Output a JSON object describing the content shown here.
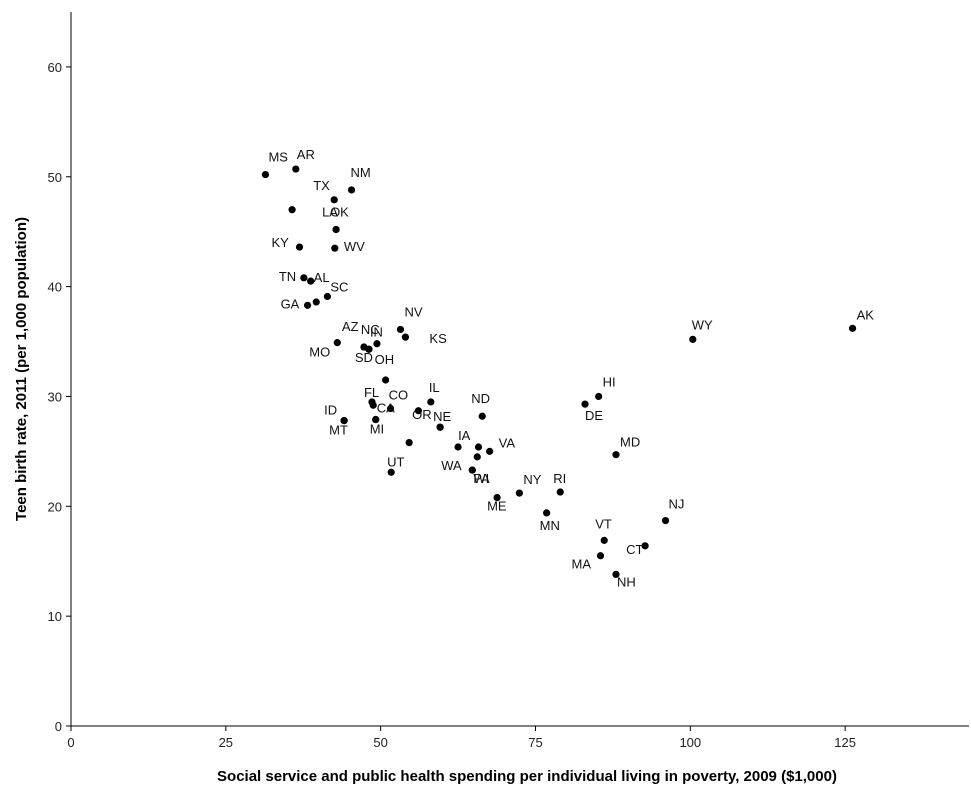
{
  "chart_data": {
    "type": "scatter",
    "xlabel": "Social service and public health spending per individual living in poverty, 2009 ($1,000)",
    "ylabel": "Teen birth rate, 2011 (per 1,000 population)",
    "xlim": [
      0,
      145
    ],
    "ylim": [
      0,
      65
    ],
    "x_ticks": [
      0,
      25,
      50,
      75,
      100,
      125
    ],
    "y_ticks": [
      0,
      10,
      20,
      30,
      40,
      50,
      60
    ],
    "grid": false,
    "legend": "none",
    "point_color": "#000000",
    "points": [
      {
        "label": "MS",
        "x": 31.4,
        "y": 50.2
      },
      {
        "label": "AR",
        "x": 36.3,
        "y": 50.7
      },
      {
        "label": "NM",
        "x": 45.3,
        "y": 48.8
      },
      {
        "label": "TX",
        "x": 42.5,
        "y": 47.9
      },
      {
        "label": "",
        "x": 35.7,
        "y": 47.0
      },
      {
        "label": "LA",
        "x": 42.8,
        "y": 45.2
      },
      {
        "label": "OK",
        "x": 42.8,
        "y": 45.2
      },
      {
        "label": "KY",
        "x": 36.9,
        "y": 43.6
      },
      {
        "label": "WV",
        "x": 42.6,
        "y": 43.5
      },
      {
        "label": "TN",
        "x": 37.6,
        "y": 40.8
      },
      {
        "label": "AL",
        "x": 38.7,
        "y": 40.5
      },
      {
        "label": "SC",
        "x": 41.4,
        "y": 39.1
      },
      {
        "label": "GA",
        "x": 38.2,
        "y": 38.3
      },
      {
        "label": "",
        "x": 39.6,
        "y": 38.6
      },
      {
        "label": "AZ",
        "x": 47.3,
        "y": 34.5
      },
      {
        "label": "NC",
        "x": 48.1,
        "y": 34.3
      },
      {
        "label": "MO",
        "x": 43.0,
        "y": 34.9
      },
      {
        "label": "NV",
        "x": 53.2,
        "y": 36.1
      },
      {
        "label": "IN",
        "x": 49.4,
        "y": 34.8
      },
      {
        "label": "KS",
        "x": 54.0,
        "y": 35.4
      },
      {
        "label": "SD",
        "x": 48.1,
        "y": 34.3
      },
      {
        "label": "OH",
        "x": 50.8,
        "y": 31.5
      },
      {
        "label": "FL",
        "x": 48.6,
        "y": 29.5
      },
      {
        "label": "",
        "x": 48.8,
        "y": 29.2
      },
      {
        "label": "CO",
        "x": 51.6,
        "y": 28.9
      },
      {
        "label": "",
        "x": 56.1,
        "y": 28.7
      },
      {
        "label": "IL",
        "x": 58.1,
        "y": 29.5
      },
      {
        "label": "NE",
        "x": 59.6,
        "y": 27.2
      },
      {
        "label": "ND",
        "x": 66.4,
        "y": 28.2
      },
      {
        "label": "ID",
        "x": 44.1,
        "y": 27.8
      },
      {
        "label": "CA",
        "x": 49.2,
        "y": 27.9
      },
      {
        "label": "OR",
        "x": 59.6,
        "y": 27.2
      },
      {
        "label": "MT",
        "x": 44.1,
        "y": 27.8
      },
      {
        "label": "MI",
        "x": 49.2,
        "y": 27.9
      },
      {
        "label": "IA",
        "x": 62.5,
        "y": 25.4
      },
      {
        "label": "VA",
        "x": 67.6,
        "y": 25.0
      },
      {
        "label": "",
        "x": 65.8,
        "y": 25.4
      },
      {
        "label": "WA",
        "x": 65.6,
        "y": 24.5
      },
      {
        "label": "UT",
        "x": 51.7,
        "y": 23.1
      },
      {
        "label": "",
        "x": 54.6,
        "y": 25.8
      },
      {
        "label": "PA",
        "x": 64.8,
        "y": 23.3
      },
      {
        "label": "WI",
        "x": 64.8,
        "y": 23.3
      },
      {
        "label": "NY",
        "x": 72.4,
        "y": 21.2
      },
      {
        "label": "ME",
        "x": 68.8,
        "y": 20.8
      },
      {
        "label": "RI",
        "x": 79.0,
        "y": 21.3
      },
      {
        "label": "MN",
        "x": 76.8,
        "y": 19.4
      },
      {
        "label": "HI",
        "x": 85.2,
        "y": 30.0
      },
      {
        "label": "DE",
        "x": 83.0,
        "y": 29.3
      },
      {
        "label": "MD",
        "x": 88.0,
        "y": 24.7
      },
      {
        "label": "VT",
        "x": 86.1,
        "y": 16.9
      },
      {
        "label": "MA",
        "x": 85.5,
        "y": 15.5
      },
      {
        "label": "NH",
        "x": 88.0,
        "y": 13.8
      },
      {
        "label": "CT",
        "x": 92.7,
        "y": 16.4
      },
      {
        "label": "NJ",
        "x": 96.0,
        "y": 18.7
      },
      {
        "label": "WY",
        "x": 100.4,
        "y": 35.2
      },
      {
        "label": "AK",
        "x": 126.2,
        "y": 36.2
      }
    ]
  }
}
